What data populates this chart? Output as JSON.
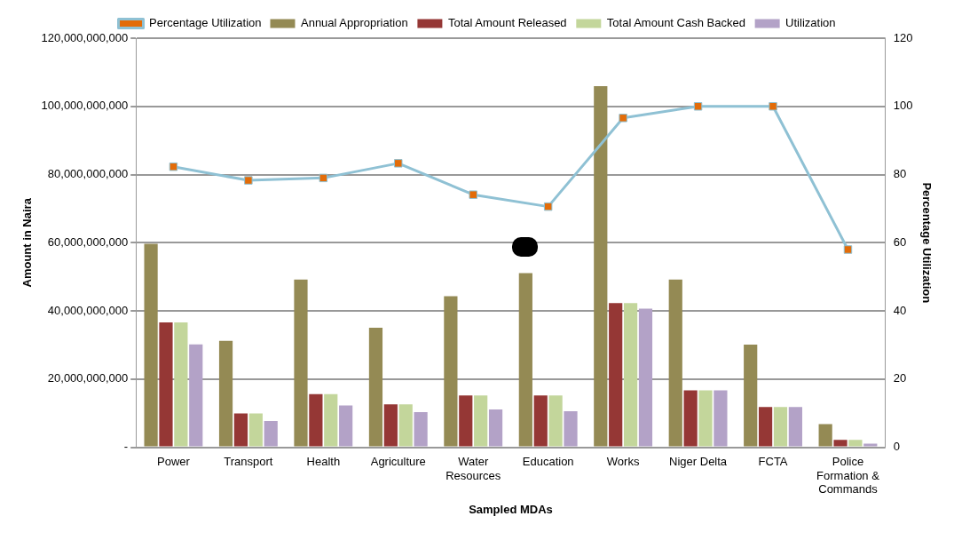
{
  "chart_data": {
    "type": "bar",
    "xlabel": "Sampled MDAs",
    "ylabel": "Amount in Naira",
    "y2label": "Percentage Utilization",
    "categories": [
      "Power",
      "Transport",
      "Health",
      "Agriculture",
      "Water Resources",
      "Education",
      "Works",
      "Niger Delta",
      "FCTA",
      "Police Formation & Commands"
    ],
    "series": [
      {
        "name": "Annual Appropriation",
        "color": "#948a54",
        "values": [
          59700000000,
          31200000000,
          49200000000,
          35100000000,
          44300000000,
          51100000000,
          105900000000,
          49200000000,
          30100000000,
          6800000000
        ]
      },
      {
        "name": "Total Amount Released",
        "color": "#953735",
        "values": [
          36600000000,
          9900000000,
          15600000000,
          12600000000,
          15200000000,
          15200000000,
          42300000000,
          16700000000,
          11800000000,
          2200000000
        ]
      },
      {
        "name": "Total Amount Cash Backed",
        "color": "#c3d69b",
        "values": [
          36600000000,
          9900000000,
          15600000000,
          12600000000,
          15200000000,
          15200000000,
          42300000000,
          16700000000,
          11800000000,
          2200000000
        ]
      },
      {
        "name": "Utilization",
        "color": "#b3a2c7",
        "values": [
          30200000000,
          7700000000,
          12300000000,
          10300000000,
          11100000000,
          10600000000,
          40700000000,
          16700000000,
          11800000000,
          1100000000
        ]
      },
      {
        "name": "Percentage Utilization",
        "type": "line",
        "axis": "y2",
        "color": "#8fc1d4",
        "marker": "square",
        "values": [
          82.3,
          78.3,
          79.0,
          83.3,
          74.1,
          70.6,
          96.6,
          100,
          100,
          58.0
        ]
      }
    ],
    "ylim": [
      0,
      120000000000
    ],
    "yticks": [
      {
        "value": 0,
        "label": "-"
      },
      {
        "value": 20000000000,
        "label": "20,000,000,000"
      },
      {
        "value": 40000000000,
        "label": "40,000,000,000"
      },
      {
        "value": 60000000000,
        "label": "60,000,000,000"
      },
      {
        "value": 80000000000,
        "label": "80,000,000,000"
      },
      {
        "value": 100000000000,
        "label": "100,000,000,000"
      },
      {
        "value": 120000000000,
        "label": "120,000,000,000"
      }
    ],
    "y2lim": [
      0,
      120
    ],
    "y2ticks": [
      0,
      20,
      40,
      60,
      80,
      100,
      120
    ],
    "grid": "y",
    "legend": "top"
  }
}
